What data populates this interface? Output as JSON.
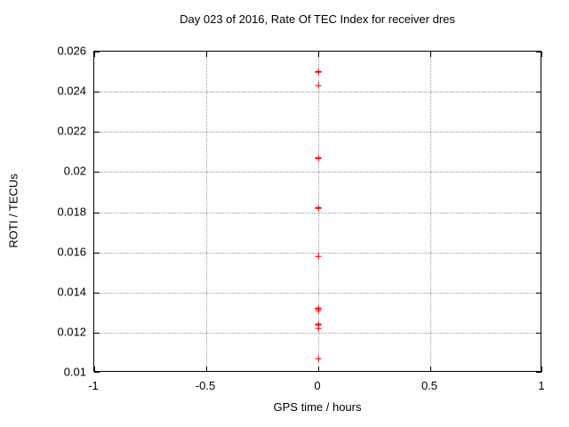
{
  "chart_data": {
    "type": "scatter",
    "title": "Day 023 of 2016, Rate Of TEC Index for receiver dres",
    "xlabel": "GPS time / hours",
    "ylabel": "ROTI / TECUs",
    "xlim": [
      -1,
      1
    ],
    "ylim": [
      0.01,
      0.026
    ],
    "x_tick_values": [
      -1,
      -0.5,
      0,
      0.5,
      1
    ],
    "x_tick_labels": [
      "-1",
      "-0.5",
      "0",
      "0.5",
      "1"
    ],
    "y_tick_values": [
      0.01,
      0.012,
      0.014,
      0.016,
      0.018,
      0.02,
      0.022,
      0.024,
      0.026
    ],
    "y_tick_labels": [
      "0.01",
      "0.012",
      "0.014",
      "0.016",
      "0.018",
      "0.02",
      "0.022",
      "0.024",
      "0.026"
    ],
    "grid": "on",
    "legend_position": "none",
    "marker": "plus",
    "colors": {
      "marker": "#ee0000",
      "grid": "#9c9c9c",
      "axis": "#000000",
      "text": "#000000",
      "background": "#ffffff"
    },
    "series": [
      {
        "x": [
          0,
          0,
          0,
          0,
          0,
          0,
          0,
          0,
          0,
          0
        ],
        "y": [
          0.025,
          0.0243,
          0.0207,
          0.0182,
          0.0158,
          0.0132,
          0.0131,
          0.0124,
          0.0122,
          0.0107
        ]
      }
    ]
  }
}
